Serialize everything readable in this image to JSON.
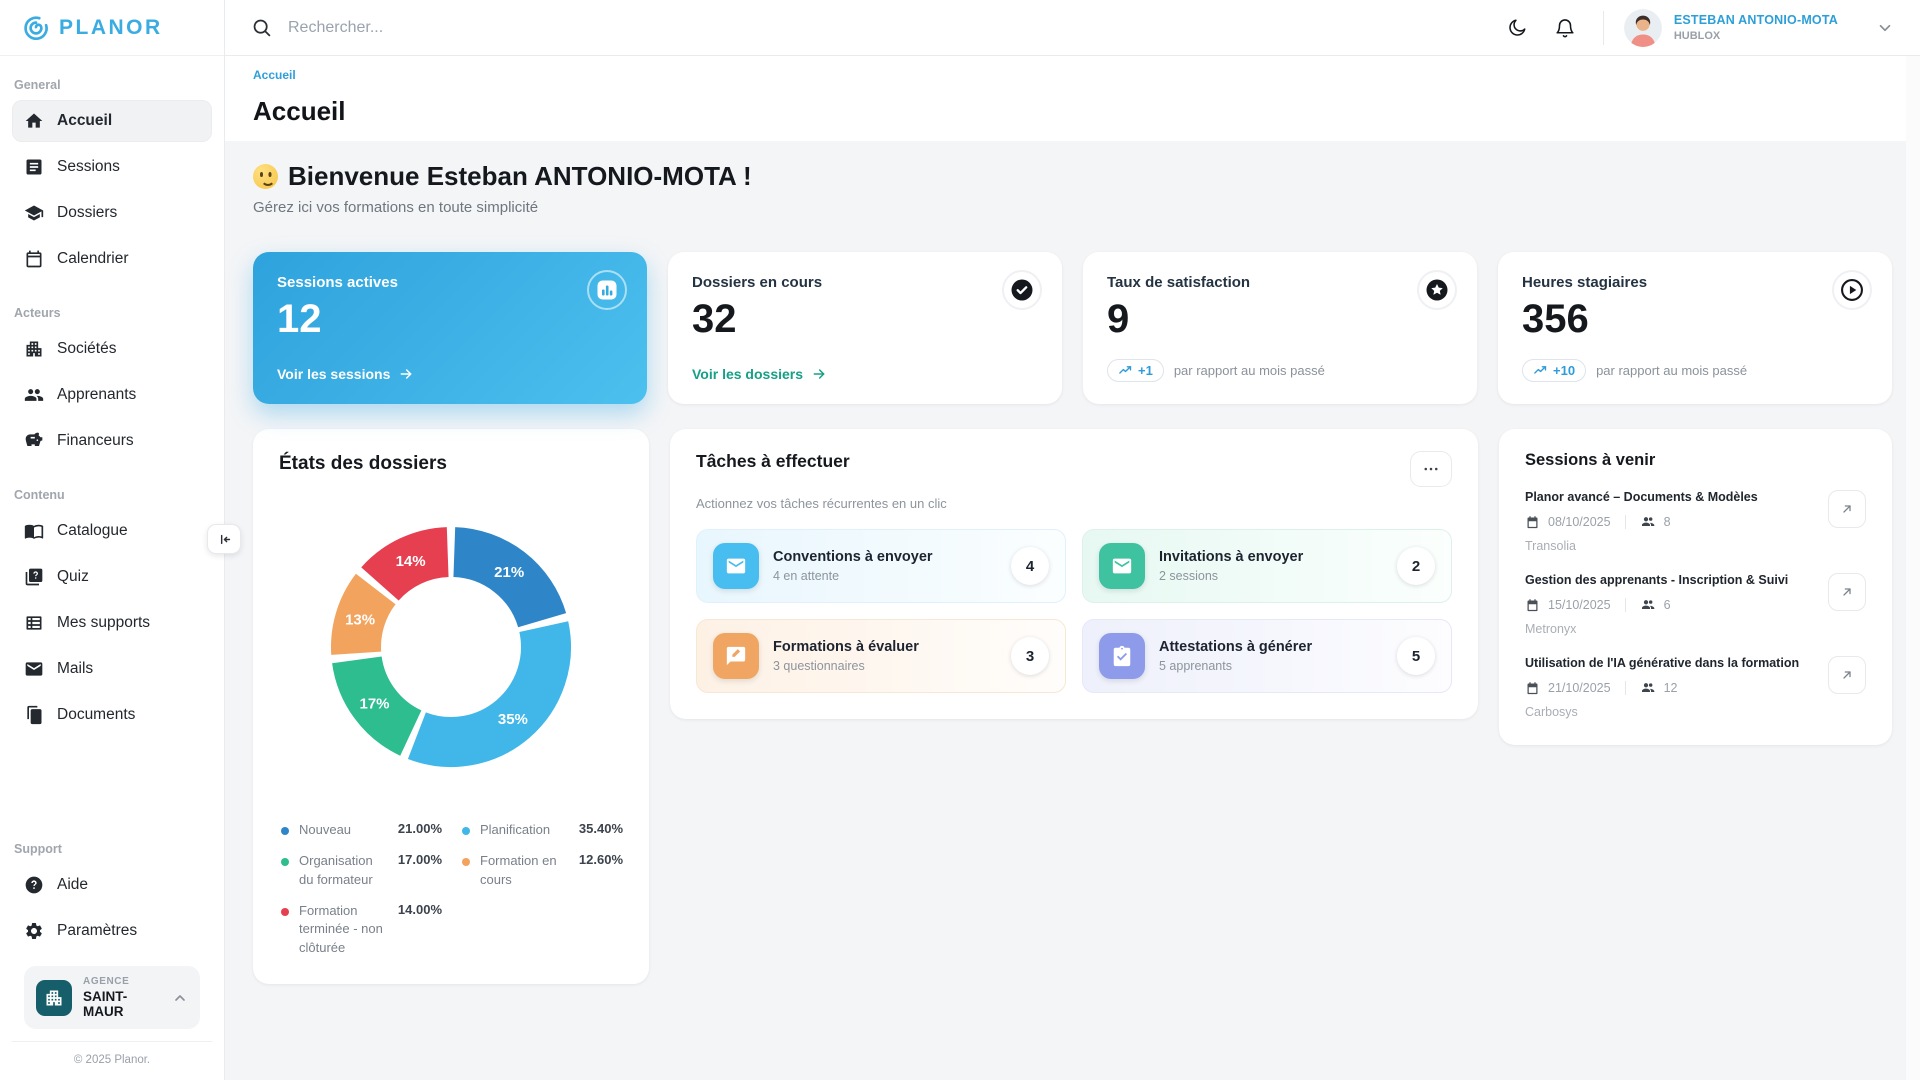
{
  "brand": {
    "name": "PLANOR"
  },
  "topbar": {
    "search_placeholder": "Rechercher...",
    "user_name": "ESTEBAN ANTONIO-MOTA",
    "user_org": "HUBLOX"
  },
  "breadcrumb": "Accueil",
  "page": {
    "title": "Accueil",
    "welcome_title": "Bienvenue Esteban ANTONIO-MOTA !",
    "welcome_subtitle": "Gérez ici vos formations en toute simplicité"
  },
  "sidebar": {
    "sections": [
      {
        "label": "General",
        "items": [
          {
            "label": "Accueil"
          },
          {
            "label": "Sessions"
          },
          {
            "label": "Dossiers"
          },
          {
            "label": "Calendrier"
          }
        ]
      },
      {
        "label": "Acteurs",
        "items": [
          {
            "label": "Sociétés"
          },
          {
            "label": "Apprenants"
          },
          {
            "label": "Financeurs"
          }
        ]
      },
      {
        "label": "Contenu",
        "items": [
          {
            "label": "Catalogue"
          },
          {
            "label": "Quiz"
          },
          {
            "label": "Mes supports"
          },
          {
            "label": "Mails"
          },
          {
            "label": "Documents"
          }
        ]
      },
      {
        "label": "Support",
        "items": [
          {
            "label": "Aide"
          },
          {
            "label": "Paramètres"
          }
        ]
      }
    ],
    "agency_kicker": "AGENCE",
    "agency_name": "SAINT-MAUR",
    "copyright": "© 2025 Planor."
  },
  "stats": [
    {
      "title": "Sessions actives",
      "value": "12",
      "link_label": "Voir les sessions"
    },
    {
      "title": "Dossiers en cours",
      "value": "32",
      "link_label": "Voir les dossiers"
    },
    {
      "title": "Taux de satisfaction",
      "value": "9",
      "delta": "+1",
      "delta_caption": "par rapport au mois passé"
    },
    {
      "title": "Heures stagiaires",
      "value": "356",
      "delta": "+10",
      "delta_caption": "par rapport au mois passé"
    }
  ],
  "chart_data": {
    "type": "donut",
    "title": "États des dossiers",
    "legend_position": "bottom",
    "series": [
      {
        "name": "Nouveau",
        "value": 21.0,
        "display": "21.00%",
        "slice_label": "21%",
        "color": "#2e86c9"
      },
      {
        "name": "Planification",
        "value": 35.4,
        "display": "35.40%",
        "slice_label": "35%",
        "color": "#40b7e8"
      },
      {
        "name": "Organisation du formateur",
        "value": 17.0,
        "display": "17.00%",
        "slice_label": "17%",
        "color": "#2dbd8f"
      },
      {
        "name": "Formation en cours",
        "value": 12.6,
        "display": "12.60%",
        "slice_label": "13%",
        "color": "#f2a35e"
      },
      {
        "name": "Formation terminée - non clôturée",
        "value": 14.0,
        "display": "14.00%",
        "slice_label": "14%",
        "color": "#e63f50"
      }
    ]
  },
  "tasks": {
    "title": "Tâches à effectuer",
    "subtitle": "Actionnez vos tâches récurrentes en un clic",
    "items": [
      {
        "title": "Conventions à envoyer",
        "subtitle": "4 en attente",
        "count": "4",
        "color": "#47bdf0"
      },
      {
        "title": "Invitations à envoyer",
        "subtitle": "2 sessions",
        "count": "2",
        "color": "#3fc2a0"
      },
      {
        "title": "Formations à évaluer",
        "subtitle": "3 questionnaires",
        "count": "3",
        "color": "#f0a562"
      },
      {
        "title": "Attestations à générer",
        "subtitle": "5 apprenants",
        "count": "5",
        "color": "#8d9bea"
      }
    ]
  },
  "sessions_upcoming": {
    "title": "Sessions à venir",
    "items": [
      {
        "title": "Planor avancé – Documents & Modèles",
        "date": "08/10/2025",
        "attendees": "8",
        "company": "Transolia"
      },
      {
        "title": "Gestion des apprenants - Inscription & Suivi",
        "date": "15/10/2025",
        "attendees": "6",
        "company": "Metronyx"
      },
      {
        "title": "Utilisation de l'IA générative dans la formation",
        "date": "21/10/2025",
        "attendees": "12",
        "company": "Carbosys"
      }
    ]
  },
  "colors": {
    "brand": "#3aace2",
    "active_card_gradient_start": "#2ea2dc",
    "active_card_gradient_end": "#4cc0ee",
    "link_teal": "#16a085",
    "delta_blue": "#2d9cdb",
    "breadcrumb_blue": "#2e9fd9",
    "agency_icon_bg": "#155e6a"
  },
  "icons": {
    "logo": "spiral",
    "search": "magnifier",
    "dark_mode": "crescent-moon",
    "notifications": "bell",
    "stat_primary": "bar-chart-circle",
    "stat_dossiers": "check-circle",
    "stat_satisfaction": "star-circle",
    "stat_heures": "play-circle",
    "delta": "trending-up",
    "session_open": "arrow-up-right",
    "session_date": "calendar",
    "session_attendees": "people"
  }
}
